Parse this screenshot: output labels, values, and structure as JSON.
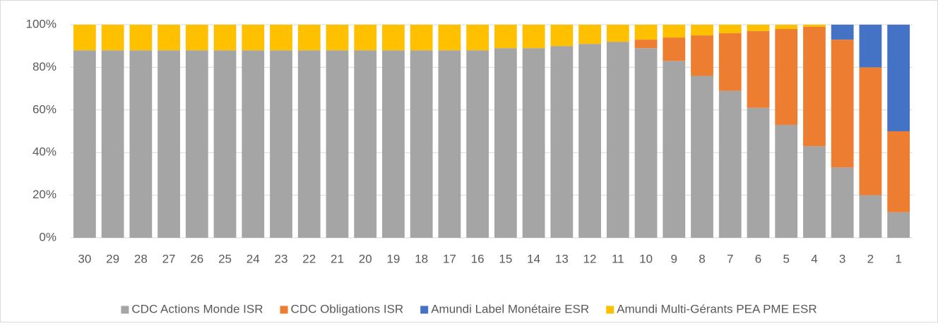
{
  "chart_data": {
    "type": "stacked_bar",
    "categories": [
      "30",
      "29",
      "28",
      "27",
      "26",
      "25",
      "24",
      "23",
      "22",
      "21",
      "20",
      "19",
      "18",
      "17",
      "16",
      "15",
      "14",
      "13",
      "12",
      "11",
      "10",
      "9",
      "8",
      "7",
      "6",
      "5",
      "4",
      "3",
      "2",
      "1"
    ],
    "series": [
      {
        "name": "CDC Actions Monde ISR",
        "color": "#a5a5a5",
        "values": [
          88,
          88,
          88,
          88,
          88,
          88,
          88,
          88,
          88,
          88,
          88,
          88,
          88,
          88,
          88,
          89,
          89,
          90,
          91,
          92,
          89,
          83,
          76,
          69,
          61,
          53,
          43,
          33,
          20,
          12
        ]
      },
      {
        "name": "CDC Obligations ISR",
        "color": "#ed7d31",
        "values": [
          0,
          0,
          0,
          0,
          0,
          0,
          0,
          0,
          0,
          0,
          0,
          0,
          0,
          0,
          0,
          0,
          0,
          0,
          0,
          0,
          4,
          11,
          19,
          27,
          36,
          45,
          56,
          60,
          60,
          38
        ]
      },
      {
        "name": "Amundi Label Monétaire ESR",
        "color": "#4472c4",
        "values": [
          0,
          0,
          0,
          0,
          0,
          0,
          0,
          0,
          0,
          0,
          0,
          0,
          0,
          0,
          0,
          0,
          0,
          0,
          0,
          0,
          0,
          0,
          0,
          0,
          0,
          0,
          0,
          7,
          20,
          50
        ]
      },
      {
        "name": "Amundi Multi-Gérants PEA PME ESR",
        "color": "#ffc000",
        "values": [
          12,
          12,
          12,
          12,
          12,
          12,
          12,
          12,
          12,
          12,
          12,
          12,
          12,
          12,
          12,
          11,
          11,
          10,
          9,
          8,
          7,
          6,
          5,
          4,
          3,
          2,
          1,
          0,
          0,
          0
        ]
      }
    ],
    "ylim": [
      0,
      100
    ],
    "yticks": [
      {
        "value": 0,
        "label": "0%"
      },
      {
        "value": 20,
        "label": "20%"
      },
      {
        "value": 40,
        "label": "40%"
      },
      {
        "value": 60,
        "label": "60%"
      },
      {
        "value": 80,
        "label": "80%"
      },
      {
        "value": 100,
        "label": "100%"
      }
    ],
    "grid": true,
    "legend": "bottom"
  }
}
